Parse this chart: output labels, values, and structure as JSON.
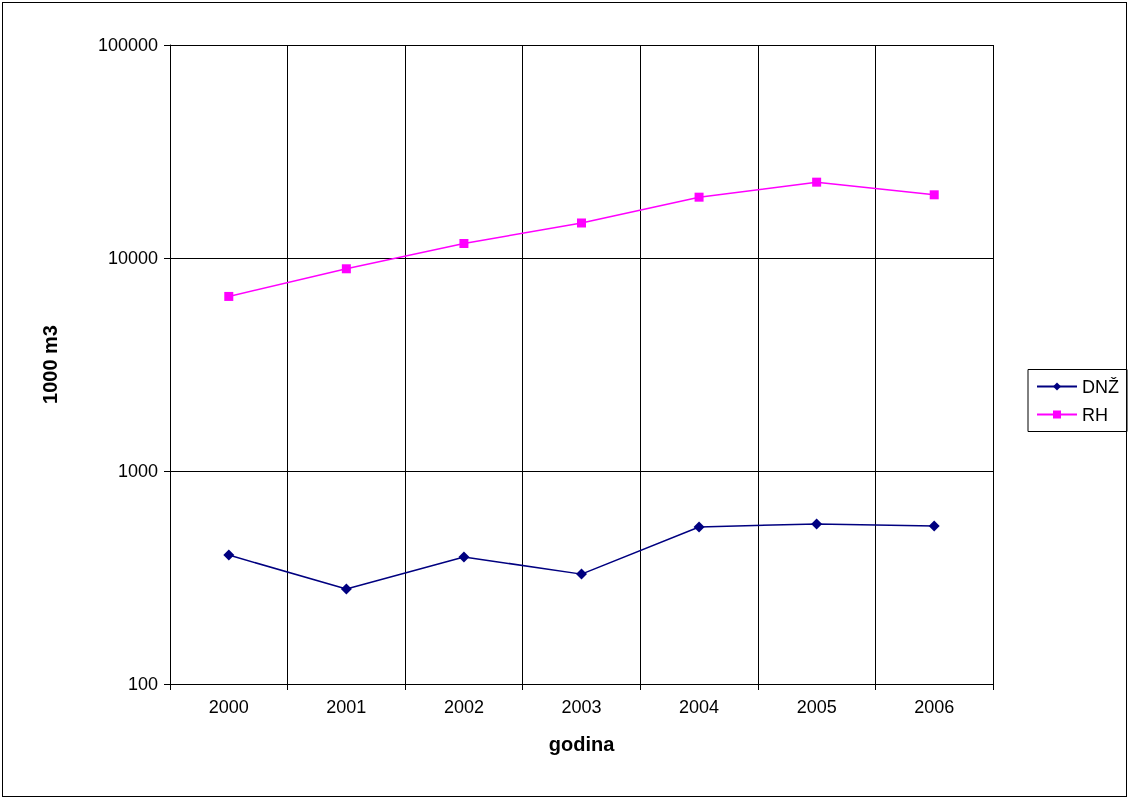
{
  "chart_data": {
    "type": "line",
    "xlabel": "godina",
    "ylabel": "1000 m3",
    "categories": [
      "2000",
      "2001",
      "2002",
      "2003",
      "2004",
      "2005",
      "2006"
    ],
    "series": [
      {
        "name": "DNŽ",
        "color": "#000080",
        "marker": "diamond",
        "values": [
          403,
          279,
          395,
          328,
          546,
          564,
          552
        ]
      },
      {
        "name": "RH",
        "color": "#ff00ff",
        "marker": "square",
        "values": [
          6600,
          8900,
          11700,
          14600,
          19300,
          22700,
          19800
        ]
      }
    ],
    "log": "y",
    "ylim": [
      100,
      100000
    ],
    "yticks": [
      100,
      1000,
      10000,
      100000
    ],
    "grid": true,
    "legend": "right",
    "line_style": "solid"
  }
}
